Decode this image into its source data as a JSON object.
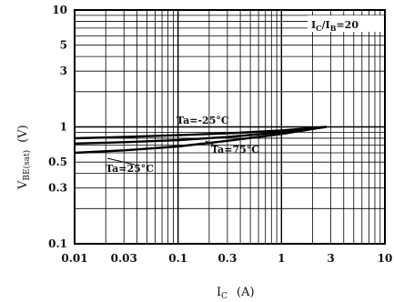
{
  "chart_data": {
    "type": "line",
    "x_scale": "log",
    "y_scale": "log",
    "xlim": [
      0.01,
      10
    ],
    "ylim": [
      0.1,
      10
    ],
    "grid": true,
    "xlabel_main": "I",
    "xlabel_sub": "C",
    "xlabel_unit": "(A)",
    "ylabel_main": "V",
    "ylabel_sub": "BE(sat)",
    "ylabel_unit": "(V)",
    "x_ticks": [
      {
        "value": 0.01,
        "label": "0.01"
      },
      {
        "value": 0.03,
        "label": "0.03"
      },
      {
        "value": 0.1,
        "label": "0.1"
      },
      {
        "value": 0.3,
        "label": "0.3"
      },
      {
        "value": 1,
        "label": "1"
      },
      {
        "value": 3,
        "label": "3"
      },
      {
        "value": 10,
        "label": "10"
      }
    ],
    "y_ticks": [
      {
        "value": 0.1,
        "label": "0.1"
      },
      {
        "value": 0.3,
        "label": "0.3"
      },
      {
        "value": 0.5,
        "label": "0.5"
      },
      {
        "value": 1,
        "label": "1"
      },
      {
        "value": 3,
        "label": "3"
      },
      {
        "value": 5,
        "label": "5"
      },
      {
        "value": 10,
        "label": "10"
      }
    ],
    "condition": {
      "a": "I",
      "a_sub": "C",
      "sep": "/I",
      "b_sub": "B",
      "rest": "=20"
    },
    "series": [
      {
        "name": "Ta=-25°C",
        "x": [
          0.01,
          0.03,
          0.1,
          0.3,
          1,
          2.7
        ],
        "y": [
          0.8,
          0.82,
          0.85,
          0.88,
          0.93,
          1.0
        ]
      },
      {
        "name": "Ta=25°C",
        "x": [
          0.01,
          0.03,
          0.1,
          0.3,
          1,
          2.7
        ],
        "y": [
          0.72,
          0.74,
          0.77,
          0.82,
          0.9,
          1.0
        ]
      },
      {
        "name": "Ta=75°C",
        "x": [
          0.01,
          0.03,
          0.1,
          0.3,
          1,
          2.7
        ],
        "y": [
          0.6,
          0.63,
          0.68,
          0.76,
          0.87,
          1.0
        ]
      }
    ]
  }
}
